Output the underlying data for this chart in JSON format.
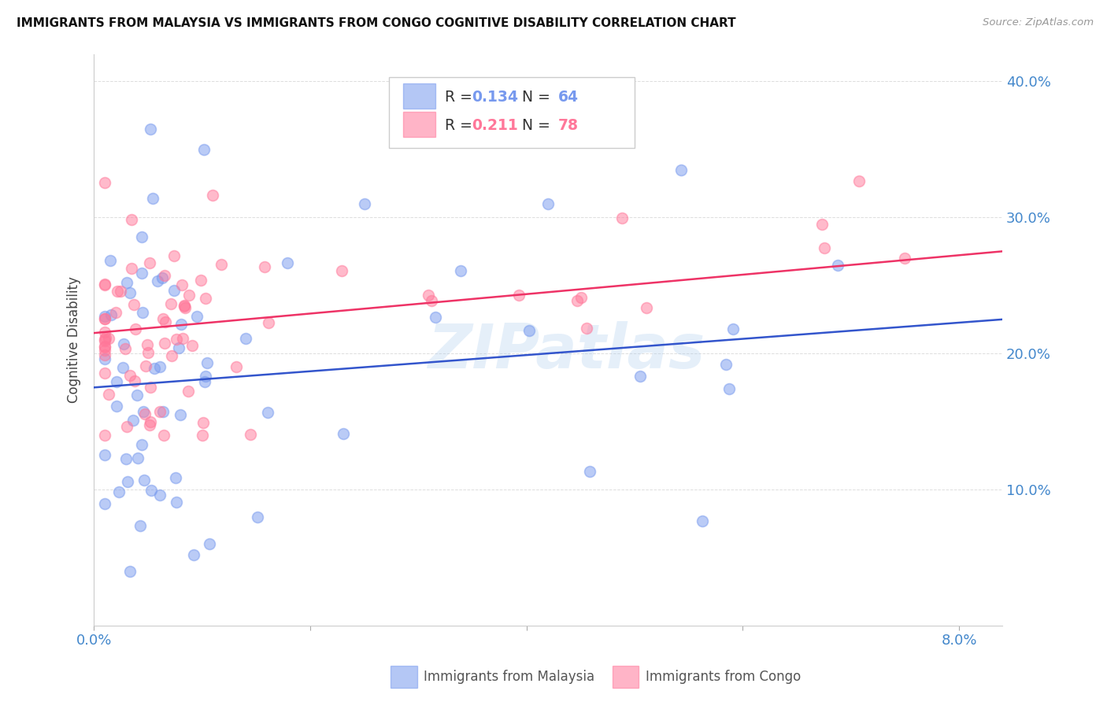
{
  "title": "IMMIGRANTS FROM MALAYSIA VS IMMIGRANTS FROM CONGO COGNITIVE DISABILITY CORRELATION CHART",
  "source": "Source: ZipAtlas.com",
  "ylabel": "Cognitive Disability",
  "malaysia_label": "Immigrants from Malaysia",
  "congo_label": "Immigrants from Congo",
  "malaysia_color": "#7799ee",
  "congo_color": "#ff7799",
  "malaysia_line_color": "#3355cc",
  "congo_line_color": "#ee3366",
  "tick_color": "#4488cc",
  "grid_color": "#dddddd",
  "malaysia_R": 0.134,
  "malaysia_N": 64,
  "congo_R": 0.211,
  "congo_N": 78,
  "xmin": 0.0,
  "xmax": 0.084,
  "ymin": 0.0,
  "ymax": 0.42,
  "watermark": "ZIPatlas",
  "malaysia_line_x0": 0.0,
  "malaysia_line_y0": 0.175,
  "malaysia_line_x1": 0.084,
  "malaysia_line_y1": 0.225,
  "congo_line_x0": 0.0,
  "congo_line_y0": 0.215,
  "congo_line_x1": 0.084,
  "congo_line_y1": 0.275
}
